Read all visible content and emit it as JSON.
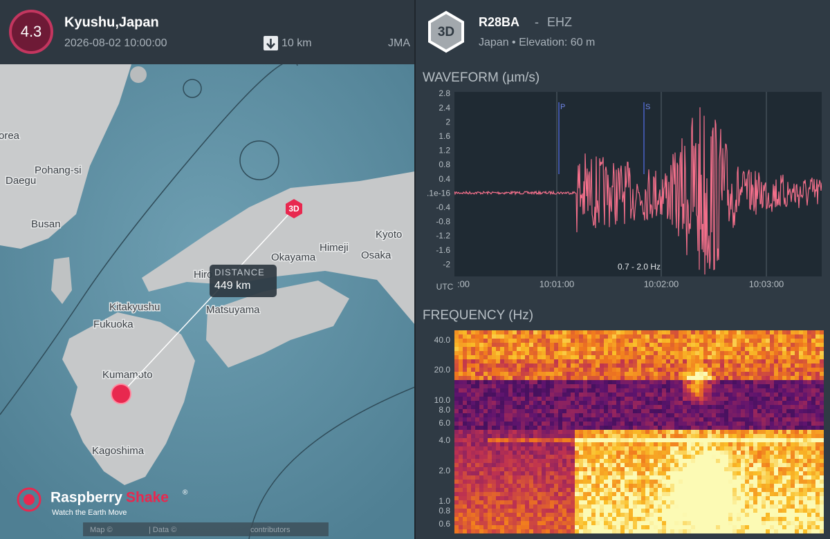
{
  "event": {
    "magnitude": "4.3",
    "location": "Kyushu,Japan",
    "datetime": "2026-08-02 10:00:00",
    "depth": "10 km",
    "source": "JMA"
  },
  "station": {
    "badge": "3D",
    "code": "R28BA",
    "separator": "-",
    "channel": "EHZ",
    "info": "Japan • Elevation: 60 m"
  },
  "map": {
    "labels": [
      "orea",
      "Pohang-si",
      "Daegu",
      "Busan",
      "Hiro",
      "Okayama",
      "Himeji",
      "Kyoto",
      "Osaka",
      "Kitakyushu",
      "Fukuoka",
      "Matsuyama",
      "Kumamoto",
      "Kagoshima"
    ],
    "station_marker": "3D",
    "distance_title": "DISTANCE",
    "distance_value": "449 km",
    "logo_word1": "Raspberry",
    "logo_word2": "Shake",
    "logo_reg": "®",
    "logo_tagline": "Watch the Earth Move",
    "attribution": [
      "Map ©",
      "| Data ©",
      "contributors"
    ]
  },
  "waveform": {
    "title": "WAVEFORM (µm/s)",
    "yticks": [
      "2.8",
      "2.4",
      "2",
      "1.6",
      "1.2",
      "0.8",
      "0.4",
      ".1e-16",
      "-0.4",
      "-0.8",
      "-1.2",
      "-1.6",
      "-2"
    ],
    "x_axis_label": "UTC",
    "xticks": [
      ":00",
      "10:01:00",
      "10:02:00",
      "10:03:00"
    ],
    "phase_p": "P",
    "phase_s": "S",
    "filter": "0.7 - 2.0 Hz"
  },
  "frequency": {
    "title": "FREQUENCY (Hz)",
    "yticks": [
      "40.0",
      "20.0",
      "10.0",
      "8.0",
      "6.0",
      "4.0",
      "2.0",
      "1.0",
      "0.8",
      "0.6"
    ]
  }
}
